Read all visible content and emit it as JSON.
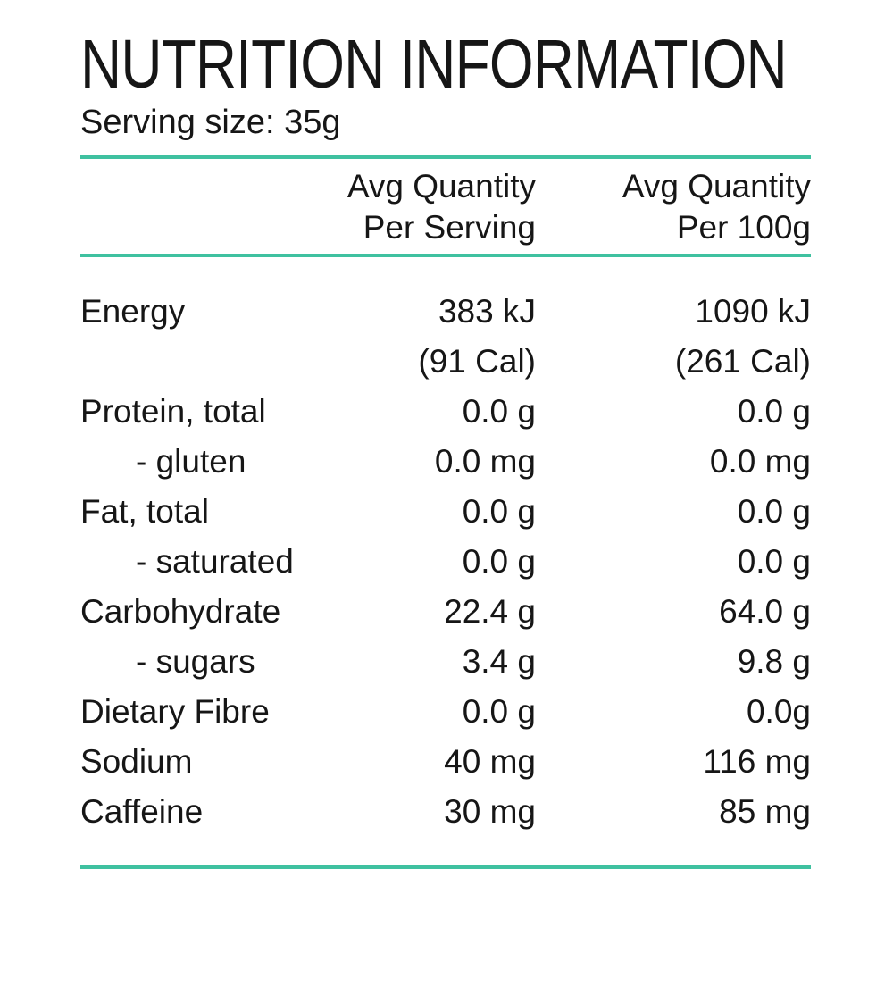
{
  "title": "NUTRITION INFORMATION",
  "serving_size": "Serving size: 35g",
  "accent_color": "#3fc1a0",
  "text_color": "#161616",
  "table": {
    "headers": {
      "per_serving": {
        "line1": "Avg Quantity",
        "line2": "Per Serving"
      },
      "per_100g": {
        "line1": "Avg Quantity",
        "line2": "Per 100g"
      }
    },
    "rows": [
      {
        "label": "Energy",
        "per_serving": "383 kJ",
        "per_100g": "1090 kJ"
      },
      {
        "label": "",
        "per_serving": "(91 Cal)",
        "per_100g": "(261 Cal)"
      },
      {
        "label": "Protein, total",
        "per_serving": "0.0 g",
        "per_100g": "0.0 g"
      },
      {
        "label": "- gluten",
        "per_serving": "0.0 mg",
        "per_100g": "0.0 mg"
      },
      {
        "label": "Fat, total",
        "per_serving": "0.0 g",
        "per_100g": "0.0 g"
      },
      {
        "label": "- saturated",
        "per_serving": "0.0 g",
        "per_100g": "0.0 g"
      },
      {
        "label": "Carbohydrate",
        "per_serving": "22.4 g",
        "per_100g": "64.0 g"
      },
      {
        "label": "- sugars",
        "per_serving": "3.4 g",
        "per_100g": "9.8 g"
      },
      {
        "label": "Dietary Fibre",
        "per_serving": "0.0 g",
        "per_100g": "0.0g"
      },
      {
        "label": "Sodium",
        "per_serving": "40 mg",
        "per_100g": "116 mg"
      },
      {
        "label": "Caffeine",
        "per_serving": "30 mg",
        "per_100g": "85 mg"
      }
    ]
  }
}
